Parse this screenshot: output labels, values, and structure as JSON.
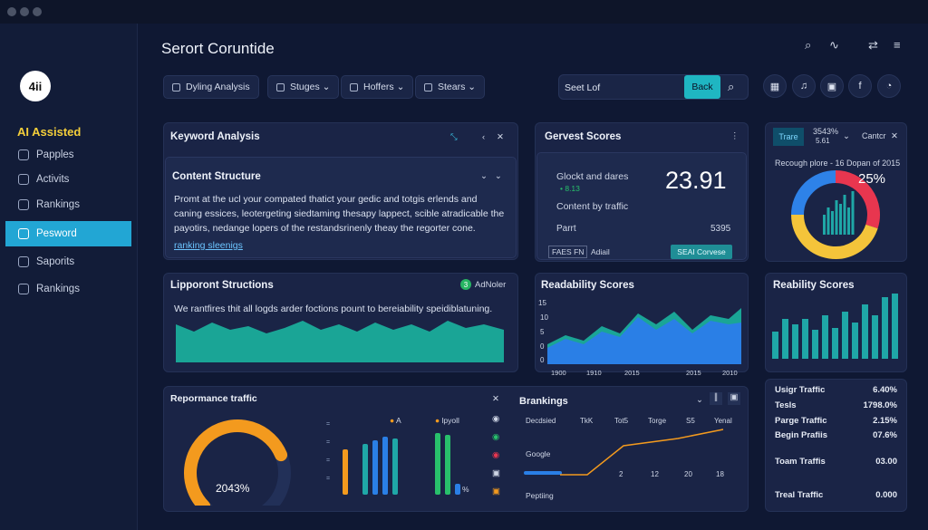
{
  "window": {
    "title": "Serort Coruntide"
  },
  "sidebar": {
    "logo": "4ii",
    "brand": "AI Assisted",
    "items": [
      {
        "label": "Papples",
        "icon": "pages-icon"
      },
      {
        "label": "Activits",
        "icon": "activity-icon"
      },
      {
        "label": "Rankings",
        "icon": "rankings-icon"
      },
      {
        "label": "Pesword",
        "icon": "password-icon",
        "active": true
      },
      {
        "label": "Saporits",
        "icon": "reports-icon"
      },
      {
        "label": "Rankings",
        "icon": "rankings-icon"
      }
    ]
  },
  "toolbar": {
    "chips": [
      "Dyling Analysis",
      "Stuges",
      "Hoffers",
      "Stears"
    ],
    "search": {
      "value": "Seet Lof",
      "button": "Back"
    },
    "top_icons": [
      "search-icon",
      "chart-icon",
      "share-icon",
      "menu-icon"
    ],
    "round_icons": [
      "grid-icon",
      "mic-icon",
      "image-icon",
      "f",
      "user-icon"
    ]
  },
  "keyword": {
    "title": "Keyword Analysis",
    "section": "Content Structure",
    "body": "Promt at the ucl your compated thatict your gedic and totgis erlends and caning essices, leotergeting siedtaming thesapy lappect, scible atradicable the payotirs, nedange lopers of the restandsrinenly theay the regorter cone.",
    "link": "ranking sleenigs"
  },
  "scores": {
    "title": "Gervest Scores",
    "label1": "Glockt and dares",
    "sub1": "• 8.13",
    "value": "23.91",
    "label2": "Content by traffic",
    "label3": "Parrt",
    "value3": "5395",
    "tag": "FAES FN",
    "tag2": "Adiail",
    "button": "SEAI Corvese"
  },
  "ring": {
    "tab": "Trare",
    "stat": "3543%",
    "stat_sub": "5.61",
    "ctrl": "Cantcr",
    "caption": "Recough plore - 16 Dopan of 2015",
    "percent": "25%",
    "segments": [
      {
        "value": 30,
        "color": "#e8364f"
      },
      {
        "value": 45,
        "color": "#f4c43a"
      },
      {
        "value": 25,
        "color": "#2e82e8"
      }
    ]
  },
  "structions": {
    "title": "Lipporont Structions",
    "badge": "AdNoler",
    "body": "We rantfires thit all logds arder foctions pount to bereiability speidiblatuning."
  },
  "readability": {
    "title": "Readability Scores",
    "y_ticks": [
      "15",
      "10",
      "5",
      "0",
      "0"
    ],
    "x_ticks": [
      "1900",
      "1910",
      "2015",
      "2015",
      "2010"
    ]
  },
  "reability": {
    "title": "Reability Scores"
  },
  "stats": [
    {
      "label": "Usigr Traffic",
      "value": "6.40%"
    },
    {
      "label": "Tesls",
      "value": "1798.0%"
    },
    {
      "label": "Parge Traffic",
      "value": "2.15%"
    },
    {
      "label": "Begin Prafiis",
      "value": "07.6%"
    },
    {
      "label": "Toam Traffis",
      "value": "03.00"
    },
    {
      "label": "Treal Traffic",
      "value": "0.000"
    }
  ],
  "performance": {
    "title": "Repormance traffic",
    "gauge_value": "2043%",
    "gauge_fraction": 0.75,
    "legend": [
      "A",
      "lpyoll"
    ],
    "pct": "%"
  },
  "rankings": {
    "title": "Brankings",
    "columns": [
      "Decdsied",
      "TkK",
      "Tot5",
      "Torge",
      "S5",
      "Yenal"
    ],
    "row_google": "Google",
    "row_other": "Peptiing",
    "x_vals": [
      "2",
      "12",
      "20",
      "18"
    ]
  }
}
